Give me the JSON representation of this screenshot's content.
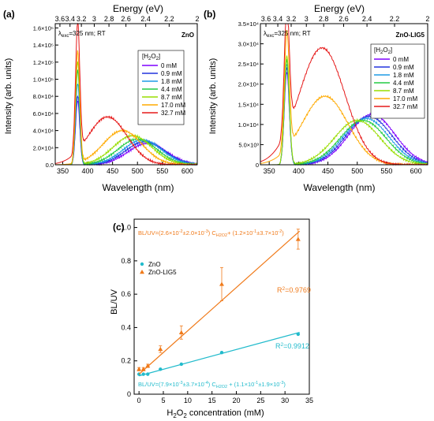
{
  "chart_data": [
    {
      "panel": "(a)",
      "type": "line",
      "top_axis_label": "Energy (eV)",
      "top_ticks": [
        "3.6",
        "3.4",
        "3.2",
        "3",
        "2.8",
        "2.6",
        "2.4",
        "2.2",
        "2"
      ],
      "top_tick_values": [
        3.6,
        3.4,
        3.2,
        3.0,
        2.8,
        2.6,
        2.4,
        2.2,
        2.0
      ],
      "xlabel": "Wavelength (nm)",
      "ylabel": "Intensity (arb. units)",
      "xlim": [
        335,
        620
      ],
      "ylim": [
        0,
        165000
      ],
      "x_ticks": [
        350,
        400,
        450,
        500,
        550,
        600
      ],
      "y_ticks": [
        0,
        20000,
        40000,
        60000,
        80000,
        100000,
        120000,
        140000,
        160000
      ],
      "y_tick_labels": [
        "0.0",
        "2.0×10⁴",
        "4.0×10⁴",
        "6.0×10⁴",
        "8.0×10⁴",
        "1.0×10⁵",
        "1.2×10⁵",
        "1.4×10⁵",
        "1.6×10⁵"
      ],
      "annotation": "λexc=325 nm; RT",
      "sample_label": "ZnO",
      "legend_title": "[H2O2]",
      "legend_position": "right",
      "series": [
        {
          "name": "0 mM",
          "color": "#7f00ff",
          "peak": 75000,
          "vis_peak": 25000,
          "vis_center": 520
        },
        {
          "name": "0.9 mM",
          "color": "#2233dd",
          "peak": 80000,
          "vis_peak": 27000,
          "vis_center": 515
        },
        {
          "name": "1.8 mM",
          "color": "#1f9be6",
          "peak": 95000,
          "vis_peak": 29000,
          "vis_center": 510
        },
        {
          "name": "4.4 mM",
          "color": "#22cc44",
          "peak": 110000,
          "vis_peak": 30000,
          "vis_center": 500
        },
        {
          "name": "8.7 mM",
          "color": "#99dd00",
          "peak": 120000,
          "vis_peak": 34000,
          "vis_center": 490
        },
        {
          "name": "17.0 mM",
          "color": "#ffaa00",
          "peak": 130000,
          "vis_peak": 40000,
          "vis_center": 470
        },
        {
          "name": "32.7 mM",
          "color": "#e61a1a",
          "peak": 150000,
          "vis_peak": 56000,
          "vis_center": 440
        }
      ]
    },
    {
      "panel": "(b)",
      "type": "line",
      "top_axis_label": "Energy (eV)",
      "top_ticks": [
        "3.6",
        "3.4",
        "3.2",
        "3",
        "2.8",
        "2.6",
        "2.4",
        "2.2",
        "2"
      ],
      "top_tick_values": [
        3.6,
        3.4,
        3.2,
        3.0,
        2.8,
        2.6,
        2.4,
        2.2,
        2.0
      ],
      "xlabel": "Wavelength (nm)",
      "ylabel": "Intensity (arb. units)",
      "xlim": [
        335,
        620
      ],
      "ylim": [
        0,
        35000
      ],
      "x_ticks": [
        350,
        400,
        450,
        500,
        550,
        600
      ],
      "y_ticks": [
        0,
        5000,
        10000,
        15000,
        20000,
        25000,
        30000,
        35000
      ],
      "y_tick_labels": [
        "0",
        "5.0×10³",
        "1.0×10⁴",
        "1.5×10⁴",
        "2.0×10⁴",
        "2.5×10⁴",
        "3.0×10⁴",
        "3.5×10⁴"
      ],
      "annotation": "λexc=325 nm; RT",
      "sample_label": "ZnO-LIG5",
      "legend_title": "[H2O2]",
      "legend_position": "right",
      "series": [
        {
          "name": "0 mM",
          "color": "#7f00ff",
          "peak": 23000,
          "vis_peak": 12500,
          "vis_center": 525
        },
        {
          "name": "0.9 mM",
          "color": "#2233dd",
          "peak": 24000,
          "vis_peak": 12000,
          "vis_center": 520
        },
        {
          "name": "1.8 mM",
          "color": "#1f9be6",
          "peak": 25000,
          "vis_peak": 11500,
          "vis_center": 515
        },
        {
          "name": "4.4 mM",
          "color": "#22cc44",
          "peak": 26000,
          "vis_peak": 11000,
          "vis_center": 510
        },
        {
          "name": "8.7 mM",
          "color": "#99dd00",
          "peak": 27000,
          "vis_peak": 11000,
          "vis_center": 500
        },
        {
          "name": "17.0 mM",
          "color": "#ffaa00",
          "peak": 29000,
          "vis_peak": 17000,
          "vis_center": 445
        },
        {
          "name": "32.7 mM",
          "color": "#e61a1a",
          "peak": 31000,
          "vis_peak": 29000,
          "vis_center": 440
        }
      ]
    },
    {
      "panel": "(c)",
      "type": "scatter",
      "xlabel": "H2O2 concentration (mM)",
      "ylabel": "BL/UV",
      "xlim": [
        -1,
        35
      ],
      "ylim": [
        0,
        1.05
      ],
      "x_ticks": [
        0,
        5,
        10,
        15,
        20,
        25,
        30,
        35
      ],
      "y_ticks": [
        0,
        0.2,
        0.4,
        0.6,
        0.8,
        1.0
      ],
      "y_tick_labels": [
        "0",
        "0.2",
        "0.4",
        "0.6",
        "0.8",
        "1.0"
      ],
      "legend_position": "top-left",
      "series": [
        {
          "name": "ZnO",
          "color": "#22bbcc",
          "marker": "circle",
          "x": [
            0,
            0.9,
            1.8,
            4.4,
            8.7,
            17.0,
            32.7
          ],
          "y": [
            0.12,
            0.12,
            0.12,
            0.15,
            0.18,
            0.25,
            0.36
          ],
          "err": [
            0,
            0,
            0,
            0,
            0,
            0,
            0
          ],
          "fit": {
            "slope": 0.0079,
            "intercept": 0.11
          },
          "equation": "BL/UV=(7.9×10⁻³±3.7×10⁻⁴) CH2O2 + (1.1×10⁻¹±1.9×10⁻³)",
          "r2": "R²=0.9912"
        },
        {
          "name": "ZnO-LIG5",
          "color": "#f07a1a",
          "marker": "triangle",
          "x": [
            0,
            0.9,
            1.8,
            4.4,
            8.7,
            17.0,
            32.7
          ],
          "y": [
            0.15,
            0.15,
            0.17,
            0.27,
            0.37,
            0.66,
            0.93
          ],
          "err": [
            0.01,
            0.01,
            0.01,
            0.02,
            0.04,
            0.1,
            0.06
          ],
          "fit": {
            "slope": 0.026,
            "intercept": 0.12
          },
          "equation": "BL/UV=(2.6×10⁻²±2.0×10⁻³) CH2O2 + (1.2×10⁻¹±3.7×10⁻²)",
          "r2": "R²=0.9769"
        }
      ]
    }
  ]
}
